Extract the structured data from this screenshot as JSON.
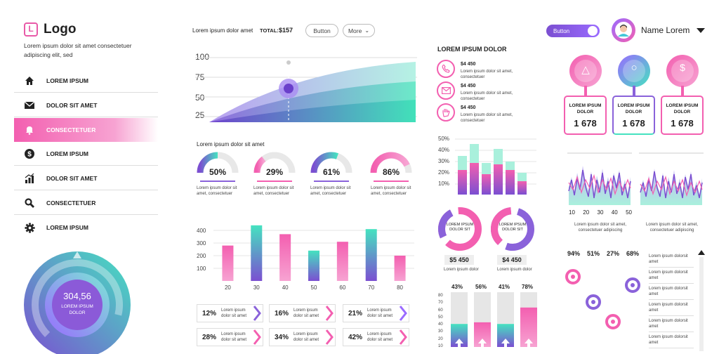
{
  "brand": {
    "logo_letter": "L",
    "logo_text": "Logo",
    "tagline": "Lorem ipsum dolor sit amet consectetuer adipiscing elit, sed"
  },
  "nav": [
    {
      "label": "LOREM IPSUM",
      "icon": "home-icon"
    },
    {
      "label": "DOLOR SIT AMET",
      "icon": "mail-icon"
    },
    {
      "label": "CONSECTETUER",
      "icon": "bell-icon",
      "active": true
    },
    {
      "label": "LOREM IPSUM",
      "icon": "dollar-icon"
    },
    {
      "label": "DOLOR SIT AMET",
      "icon": "bar-chart-icon"
    },
    {
      "label": "CONSECTETUER",
      "icon": "search-icon"
    },
    {
      "label": "LOREM IPSUM",
      "icon": "gear-icon"
    }
  ],
  "gauge": {
    "value": "304,56",
    "label": "LOREM IPSUM DOLOR"
  },
  "topbar": {
    "text": "Lorem ipsum dolor amet",
    "total_label": "TOTAL:",
    "total_value": "$157",
    "button": "Button",
    "more": "More"
  },
  "area_chart": {
    "yticks": [
      "100",
      "75",
      "50",
      "25"
    ]
  },
  "donuts": {
    "title": "Lorem ipsum dolor sit amet",
    "items": [
      {
        "pct": "50%",
        "value": 0.5,
        "text": "Lorem ipsum dolor sit amet, consectetuer"
      },
      {
        "pct": "29%",
        "value": 0.29,
        "text": "Lorem ipsum dolor sit amet, consectetuer"
      },
      {
        "pct": "61%",
        "value": 0.61,
        "text": "Lorem ipsum dolor sit amet, consectetuer"
      },
      {
        "pct": "86%",
        "value": 0.86,
        "text": "Lorem ipsum dolor sit amet, consectetuer"
      }
    ]
  },
  "chart_data": {
    "type": "bar",
    "categories": [
      "20",
      "30",
      "40",
      "50",
      "60",
      "70",
      "80"
    ],
    "values": [
      280,
      440,
      370,
      240,
      310,
      410,
      200
    ],
    "yticks": [
      "400",
      "300",
      "200",
      "100"
    ],
    "ylim": [
      0,
      500
    ]
  },
  "chips": [
    {
      "pct": "12%",
      "text": "Lorem ipsum dolor sit amet"
    },
    {
      "pct": "16%",
      "text": "Lorem ipsum dolor sit amet"
    },
    {
      "pct": "21%",
      "text": "Lorem ipsum dolor sit amet"
    },
    {
      "pct": "28%",
      "text": "Lorem ipsum dolor sit amet"
    },
    {
      "pct": "34%",
      "text": "Lorem ipsum dolor sit amet"
    },
    {
      "pct": "42%",
      "text": "Lorem ipsum dolor sit amet"
    }
  ],
  "contacts": {
    "title": "LOREM IPSUM DOLOR",
    "items": [
      {
        "icon": "phone-icon",
        "amount": "$4 450",
        "text": "Lorem ipsum dolor sit amet, consectetuer"
      },
      {
        "icon": "envelope-icon",
        "amount": "$4 450",
        "text": "Lorem ipsum dolor sit amet, consectetuer"
      },
      {
        "icon": "hand-icon",
        "amount": "$4 450",
        "text": "Lorem ipsum dolor sit amet, consectetuer"
      }
    ]
  },
  "stacked": {
    "yticks": [
      "50%",
      "40%",
      "30%",
      "20%",
      "10%"
    ]
  },
  "rings": [
    {
      "label": "LOREM IPSUM DOLOR SIT",
      "amount": "$5 450",
      "text": "Lorem ipsum dolor"
    },
    {
      "label": "LOREM IPSUM DOLOR SIT",
      "amount": "$4 450",
      "text": "Lorem ipsum dolor"
    }
  ],
  "columns": {
    "pcts": [
      "43%",
      "56%",
      "41%",
      "78%"
    ],
    "values": [
      0.43,
      0.56,
      0.41,
      0.78
    ],
    "yticks": [
      "80",
      "70",
      "60",
      "50",
      "40",
      "30",
      "20",
      "10"
    ]
  },
  "right_top": {
    "toggle": "Button",
    "user": "Name Lorem"
  },
  "pins": [
    {
      "icon": "megaphone-icon",
      "label": "LOREM IPSUM DOLOR",
      "value": "1 678"
    },
    {
      "icon": "cart-icon",
      "label": "LOREM IPSUM DOLOR",
      "value": "1 678"
    },
    {
      "icon": "piggy-bank-icon",
      "label": "LOREM IPSUM DOLOR",
      "value": "1 678"
    }
  ],
  "wave": {
    "xticks": [
      "10",
      "20",
      "30",
      "40",
      "50"
    ],
    "caption": "Lorem ipsum dolor sit amet, consectetuer adipiscing"
  },
  "wave2": {
    "caption": "Lorem ipsum dolor sit amet, consectetuer adipiscing"
  },
  "sliders": {
    "pcts": [
      "94%",
      "51%",
      "27%",
      "68%"
    ],
    "values": [
      0.94,
      0.51,
      0.27,
      0.68
    ]
  },
  "side_list": [
    "Lorem ipsum dolorsit amet",
    "Lorem ipsum dolorsit amet",
    "Lorem ipsum dolorsit amet",
    "Lorem ipsum dolorsit amet",
    "Lorem ipsum dolorsit amet",
    "Lorem ipsum dolorsit amet"
  ],
  "colors": {
    "pink": "#f35fb0",
    "purple": "#7b4fd1",
    "teal": "#45e2c0",
    "violet": "#9a6bff"
  }
}
